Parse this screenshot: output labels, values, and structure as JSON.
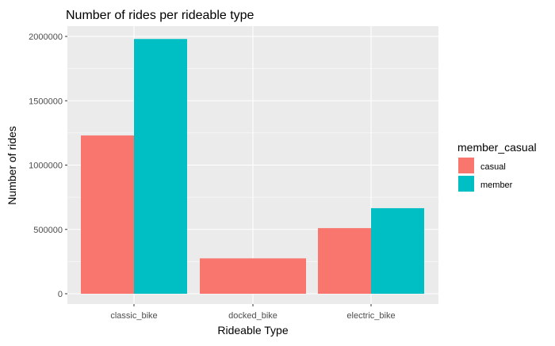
{
  "chart_data": {
    "type": "bar",
    "title": "Number of rides per rideable type",
    "xlabel": "Rideable Type",
    "ylabel": "Number of rides",
    "categories": [
      "classic_bike",
      "docked_bike",
      "electric_bike"
    ],
    "series": [
      {
        "name": "casual",
        "values": [
          1230000,
          275000,
          510000
        ]
      },
      {
        "name": "member",
        "values": [
          1980000,
          null,
          665000
        ]
      }
    ],
    "ylim": [
      0,
      2000000
    ],
    "yticks": [
      0,
      500000,
      1000000,
      1500000,
      2000000
    ],
    "ytick_labels": [
      "0",
      "500000",
      "1000000",
      "1500000",
      "2000000"
    ],
    "grid": true,
    "legend": {
      "title": "member_casual",
      "placement": "right",
      "entries": [
        "casual",
        "member"
      ]
    },
    "colors": {
      "casual": "#F8766D",
      "member": "#00BFC4",
      "panel_background": "#EBEBEB",
      "gridline": "#FFFFFF"
    }
  }
}
